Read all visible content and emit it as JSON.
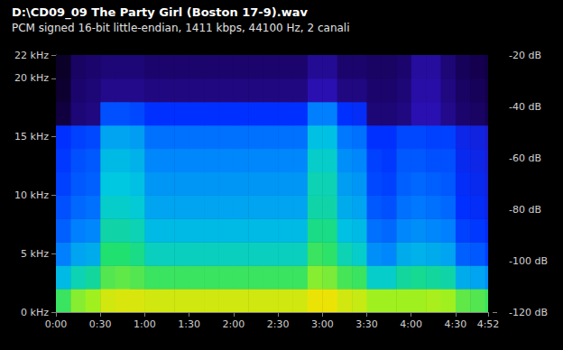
{
  "chart_data": {
    "type": "heatmap",
    "title": "D:\\CD09_09 The Party Girl (Boston 17-9).wav",
    "subtitle": "PCM signed 16-bit little-endian, 1411 kbps, 44100 Hz, 2 canali",
    "time_bins": [
      0,
      10,
      20,
      30,
      40,
      50,
      60,
      70,
      80,
      90,
      100,
      110,
      120,
      130,
      140,
      150,
      160,
      170,
      180,
      190,
      200,
      210,
      220,
      230,
      240,
      250,
      260,
      270,
      280,
      290,
      292
    ],
    "freq_bins": [
      0,
      2,
      4,
      6,
      8,
      10,
      12,
      14,
      16,
      18,
      20,
      22
    ],
    "cells": [
      [
        -58,
        -52,
        -50,
        -45,
        -44,
        -44,
        -45,
        -45,
        -45,
        -45,
        -45,
        -45,
        -45,
        -45,
        -45,
        -45,
        -45,
        -42,
        -42,
        -45,
        -46,
        -50,
        -50,
        -50,
        -50,
        -49,
        -50,
        -55,
        -56,
        -58
      ],
      [
        -72,
        -66,
        -64,
        -56,
        -55,
        -56,
        -58,
        -58,
        -58,
        -58,
        -58,
        -58,
        -58,
        -58,
        -58,
        -58,
        -58,
        -52,
        -53,
        -57,
        -58,
        -68,
        -68,
        -64,
        -63,
        -64,
        -65,
        -74,
        -75,
        -78
      ],
      [
        -80,
        -75,
        -74,
        -60,
        -60,
        -62,
        -67,
        -67,
        -67,
        -67,
        -67,
        -67,
        -67,
        -67,
        -67,
        -67,
        -67,
        -58,
        -59,
        -66,
        -68,
        -78,
        -79,
        -74,
        -73,
        -74,
        -75,
        -84,
        -85,
        -88
      ],
      [
        -84,
        -80,
        -79,
        -65,
        -65,
        -66,
        -72,
        -72,
        -72,
        -72,
        -72,
        -72,
        -72,
        -72,
        -72,
        -72,
        -72,
        -62,
        -62,
        -71,
        -72,
        -82,
        -83,
        -79,
        -78,
        -79,
        -80,
        -88,
        -89,
        -92
      ],
      [
        -86,
        -83,
        -82,
        -68,
        -68,
        -69,
        -75,
        -75,
        -75,
        -75,
        -75,
        -75,
        -75,
        -75,
        -75,
        -75,
        -75,
        -65,
        -65,
        -74,
        -75,
        -85,
        -86,
        -82,
        -81,
        -82,
        -83,
        -90,
        -91,
        -94
      ],
      [
        -88,
        -85,
        -84,
        -70,
        -70,
        -71,
        -77,
        -77,
        -77,
        -77,
        -77,
        -77,
        -77,
        -77,
        -77,
        -77,
        -77,
        -66,
        -66,
        -76,
        -77,
        -87,
        -88,
        -84,
        -83,
        -84,
        -85,
        -91,
        -92,
        -95
      ],
      [
        -89,
        -86,
        -85,
        -72,
        -72,
        -73,
        -79,
        -79,
        -79,
        -79,
        -79,
        -79,
        -79,
        -79,
        -79,
        -79,
        -79,
        -68,
        -68,
        -78,
        -79,
        -88,
        -89,
        -85,
        -85,
        -86,
        -86,
        -92,
        -93,
        -96
      ],
      [
        -90,
        -88,
        -87,
        -75,
        -75,
        -76,
        -82,
        -82,
        -82,
        -82,
        -82,
        -82,
        -82,
        -82,
        -82,
        -82,
        -82,
        -71,
        -71,
        -81,
        -82,
        -90,
        -90,
        -87,
        -87,
        -88,
        -88,
        -93,
        -94,
        -97
      ],
      [
        -112,
        -106,
        -105,
        -86,
        -86,
        -87,
        -90,
        -90,
        -90,
        -90,
        -90,
        -90,
        -90,
        -90,
        -90,
        -90,
        -90,
        -80,
        -80,
        -90,
        -91,
        -106,
        -106,
        -105,
        -100,
        -100,
        -104,
        -107,
        -108,
        -110
      ],
      [
        -114,
        -107,
        -106,
        -104,
        -104,
        -104,
        -105,
        -105,
        -105,
        -105,
        -105,
        -105,
        -105,
        -105,
        -105,
        -105,
        -105,
        -100,
        -100,
        -105,
        -105,
        -107,
        -107,
        -106,
        -101,
        -101,
        -105,
        -108,
        -109,
        -111
      ],
      [
        -115,
        -108,
        -107,
        -106,
        -106,
        -106,
        -107,
        -107,
        -107,
        -107,
        -107,
        -107,
        -107,
        -107,
        -107,
        -107,
        -107,
        -103,
        -103,
        -107,
        -107,
        -108,
        -108,
        -107,
        -102,
        -102,
        -106,
        -109,
        -110,
        -112
      ]
    ],
    "xlim": [
      0,
      292
    ],
    "xticks": [
      {
        "value": 0,
        "label": "0:00"
      },
      {
        "value": 30,
        "label": "0:30"
      },
      {
        "value": 60,
        "label": "1:00"
      },
      {
        "value": 90,
        "label": "1:30"
      },
      {
        "value": 120,
        "label": "2:00"
      },
      {
        "value": 150,
        "label": "2:30"
      },
      {
        "value": 180,
        "label": "3:00"
      },
      {
        "value": 210,
        "label": "3:30"
      },
      {
        "value": 240,
        "label": "4:00"
      },
      {
        "value": 270,
        "label": "4:30"
      },
      {
        "value": 292,
        "label": "4:52"
      }
    ],
    "ylim": [
      0,
      22
    ],
    "yticks": [
      {
        "value": 0,
        "label": "0 kHz"
      },
      {
        "value": 5,
        "label": "5 kHz"
      },
      {
        "value": 10,
        "label": "10 kHz"
      },
      {
        "value": 15,
        "label": "15 kHz"
      },
      {
        "value": 20,
        "label": "20 kHz"
      },
      {
        "value": 22,
        "label": "22 kHz"
      }
    ],
    "colorbar_range": [
      -120,
      -20
    ],
    "colorbar_ticks": [
      {
        "value": -20,
        "label": "-20 dB"
      },
      {
        "value": -40,
        "label": "-40 dB"
      },
      {
        "value": -60,
        "label": "-60 dB"
      },
      {
        "value": -80,
        "label": "-80 dB"
      },
      {
        "value": -100,
        "label": "-100 dB"
      },
      {
        "value": -120,
        "label": "-120 dB"
      }
    ],
    "grid": false
  }
}
